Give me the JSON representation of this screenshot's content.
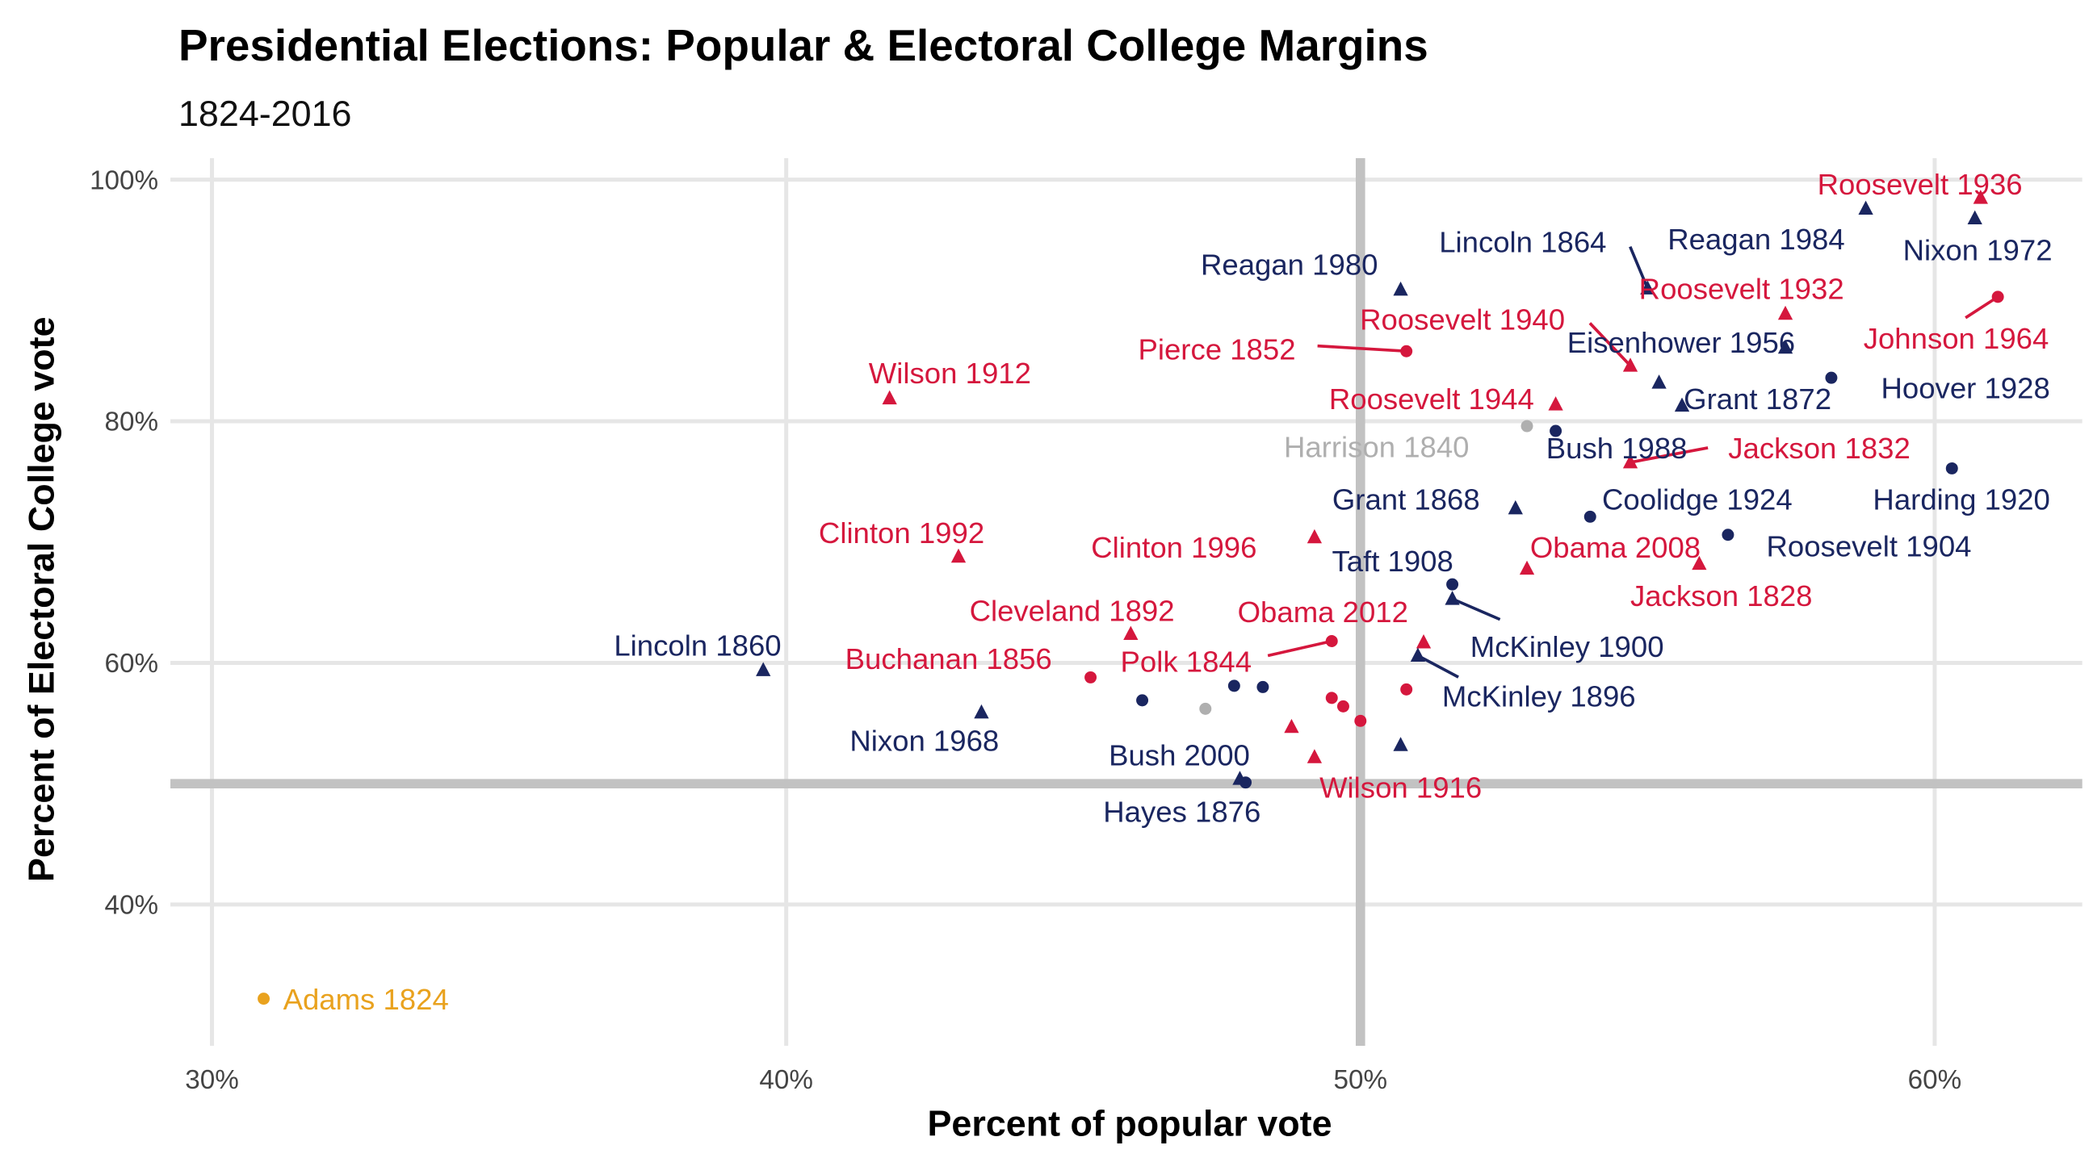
{
  "chart_data": {
    "type": "scatter",
    "title": "Presidential Elections: Popular & Electoral College Margins",
    "subtitle": "1824-2016",
    "xlabel": "Percent of popular vote",
    "ylabel": "Percent of Electoral College vote",
    "xlim": [
      29.3,
      62.6
    ],
    "ylim": [
      28.6,
      101.8
    ],
    "x_ticks": [
      {
        "value": 30,
        "label": "30%"
      },
      {
        "value": 40,
        "label": "40%"
      },
      {
        "value": 50,
        "label": "50%"
      },
      {
        "value": 60,
        "label": "60%"
      }
    ],
    "y_ticks": [
      {
        "value": 40,
        "label": "40%"
      },
      {
        "value": 60,
        "label": "60%"
      },
      {
        "value": 80,
        "label": "80%"
      },
      {
        "value": 100,
        "label": "100%"
      }
    ],
    "reference_lines": {
      "x": 50,
      "y": 50
    },
    "grid": true,
    "legend": "none",
    "colors": {
      "red": "#D5173D",
      "navy": "#1A2660",
      "gray": "#AFAFAF",
      "orange": "#E9A21E",
      "grid": "#E6E6E6",
      "reference": "#C2C2C2"
    },
    "points": [
      {
        "label": "Roosevelt 1936",
        "x": 60.8,
        "y": 98.5,
        "color": "red",
        "shape": "triangle"
      },
      {
        "label": "Reagan 1984",
        "x": 58.8,
        "y": 97.6,
        "color": "navy",
        "shape": "triangle"
      },
      {
        "label": "Nixon 1972",
        "x": 60.7,
        "y": 96.8,
        "color": "navy",
        "shape": "triangle"
      },
      {
        "label": "Lincoln 1864",
        "x": 55.0,
        "y": 91.0,
        "color": "navy",
        "shape": "triangle"
      },
      {
        "label": "Reagan 1980",
        "x": 50.7,
        "y": 90.9,
        "color": "navy",
        "shape": "triangle"
      },
      {
        "label": "Roosevelt 1932",
        "x": 57.4,
        "y": 88.9,
        "color": "red",
        "shape": "triangle"
      },
      {
        "label": "Johnson 1964",
        "x": 61.1,
        "y": 90.3,
        "color": "red",
        "shape": "circle"
      },
      {
        "label": "Roosevelt 1940",
        "x": 54.7,
        "y": 84.6,
        "color": "red",
        "shape": "triangle"
      },
      {
        "label": "Pierce 1852",
        "x": 50.8,
        "y": 85.8,
        "color": "red",
        "shape": "circle"
      },
      {
        "label": "Eisenhower 1956",
        "x": 57.4,
        "y": 86.1,
        "color": "navy",
        "shape": "triangle"
      },
      {
        "label": "Hoover 1928",
        "x": 58.2,
        "y": 83.6,
        "color": "navy",
        "shape": "circle"
      },
      {
        "label": "",
        "x": 55.2,
        "y": 83.2,
        "color": "navy",
        "shape": "triangle"
      },
      {
        "label": "Grant 1872",
        "x": 55.6,
        "y": 81.3,
        "color": "navy",
        "shape": "triangle"
      },
      {
        "label": "Roosevelt 1944",
        "x": 53.4,
        "y": 81.4,
        "color": "red",
        "shape": "triangle"
      },
      {
        "label": "Harrison 1840",
        "x": 52.9,
        "y": 79.6,
        "color": "gray",
        "shape": "circle"
      },
      {
        "label": "Bush 1988",
        "x": 53.4,
        "y": 79.2,
        "color": "navy",
        "shape": "circle"
      },
      {
        "label": "Jackson 1832",
        "x": 54.7,
        "y": 76.6,
        "color": "red",
        "shape": "triangle"
      },
      {
        "label": "Harding 1920",
        "x": 60.3,
        "y": 76.1,
        "color": "navy",
        "shape": "circle"
      },
      {
        "label": "Grant 1868",
        "x": 52.7,
        "y": 72.8,
        "color": "navy",
        "shape": "triangle"
      },
      {
        "label": "Coolidge 1924",
        "x": 54.0,
        "y": 72.1,
        "color": "navy",
        "shape": "circle"
      },
      {
        "label": "Roosevelt 1904",
        "x": 56.4,
        "y": 70.6,
        "color": "navy",
        "shape": "circle"
      },
      {
        "label": "Clinton 1996",
        "x": 49.2,
        "y": 70.4,
        "color": "red",
        "shape": "triangle"
      },
      {
        "label": "Obama 2008",
        "x": 52.9,
        "y": 67.8,
        "color": "red",
        "shape": "triangle"
      },
      {
        "label": "Jackson 1828",
        "x": 55.9,
        "y": 68.2,
        "color": "red",
        "shape": "triangle"
      },
      {
        "label": "Clinton 1992",
        "x": 43.0,
        "y": 68.8,
        "color": "red",
        "shape": "triangle"
      },
      {
        "label": "Wilson 1912",
        "x": 41.8,
        "y": 81.9,
        "color": "red",
        "shape": "triangle"
      },
      {
        "label": "Taft 1908",
        "x": 51.6,
        "y": 66.5,
        "color": "navy",
        "shape": "circle"
      },
      {
        "label": "McKinley 1900",
        "x": 51.6,
        "y": 65.3,
        "color": "navy",
        "shape": "triangle"
      },
      {
        "label": "Cleveland 1892",
        "x": 46.0,
        "y": 62.4,
        "color": "red",
        "shape": "triangle"
      },
      {
        "label": "Polk 1844",
        "x": 49.5,
        "y": 61.8,
        "color": "red",
        "shape": "circle"
      },
      {
        "label": "Obama 2012",
        "x": 51.1,
        "y": 61.7,
        "color": "red",
        "shape": "triangle"
      },
      {
        "label": "McKinley 1896",
        "x": 51.0,
        "y": 60.6,
        "color": "navy",
        "shape": "triangle"
      },
      {
        "label": "Lincoln 1860",
        "x": 39.6,
        "y": 59.4,
        "color": "navy",
        "shape": "triangle"
      },
      {
        "label": "Buchanan 1856",
        "x": 45.3,
        "y": 58.8,
        "color": "red",
        "shape": "circle"
      },
      {
        "label": "",
        "x": 50.8,
        "y": 57.8,
        "color": "red",
        "shape": "circle"
      },
      {
        "label": "",
        "x": 47.8,
        "y": 58.1,
        "color": "navy",
        "shape": "circle"
      },
      {
        "label": "",
        "x": 48.3,
        "y": 58.0,
        "color": "navy",
        "shape": "circle"
      },
      {
        "label": "",
        "x": 46.2,
        "y": 56.9,
        "color": "navy",
        "shape": "circle"
      },
      {
        "label": "",
        "x": 47.3,
        "y": 56.2,
        "color": "gray",
        "shape": "circle"
      },
      {
        "label": "",
        "x": 49.5,
        "y": 57.1,
        "color": "red",
        "shape": "circle"
      },
      {
        "label": "",
        "x": 49.7,
        "y": 56.4,
        "color": "red",
        "shape": "circle"
      },
      {
        "label": "",
        "x": 50.0,
        "y": 55.2,
        "color": "red",
        "shape": "circle"
      },
      {
        "label": "",
        "x": 48.8,
        "y": 54.7,
        "color": "red",
        "shape": "triangle"
      },
      {
        "label": "Wilson 1916",
        "x": 49.2,
        "y": 52.2,
        "color": "red",
        "shape": "triangle"
      },
      {
        "label": "",
        "x": 50.7,
        "y": 53.2,
        "color": "navy",
        "shape": "triangle"
      },
      {
        "label": "Nixon 1968",
        "x": 43.4,
        "y": 55.9,
        "color": "navy",
        "shape": "triangle"
      },
      {
        "label": "Bush 2000",
        "x": 47.9,
        "y": 50.4,
        "color": "navy",
        "shape": "triangle"
      },
      {
        "label": "Hayes 1876",
        "x": 48.0,
        "y": 50.1,
        "color": "navy",
        "shape": "circle"
      },
      {
        "label": "Adams 1824",
        "x": 30.9,
        "y": 32.2,
        "color": "orange",
        "shape": "circle"
      }
    ]
  }
}
